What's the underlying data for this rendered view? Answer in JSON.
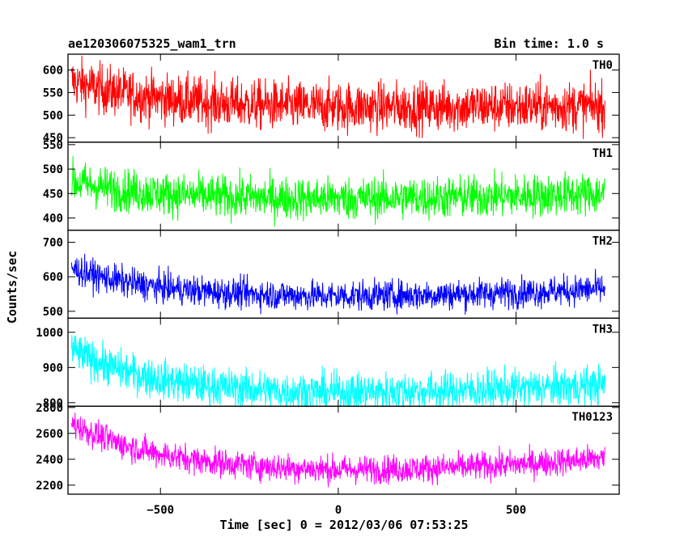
{
  "header": {
    "title": "ae120306075325_wam1_trn",
    "bin_time": "Bin time: 1.0 s"
  },
  "chart_data": {
    "type": "line",
    "title": "ae120306075325_wam1_trn",
    "xlabel": "Time [sec] 0 = 2012/03/06 07:53:25",
    "ylabel": "Counts/sec",
    "xlim": [
      -760,
      790
    ],
    "x_start": -750,
    "x_end": 750,
    "x_step": 1,
    "xticks": [
      -500,
      0,
      500
    ],
    "xtick_labels": [
      "−500",
      "0",
      "500"
    ],
    "grid": false,
    "panels": [
      {
        "name": "TH0",
        "color": "#ff0000",
        "ylim": [
          440,
          635
        ],
        "yticks": [
          450,
          500,
          550,
          600
        ],
        "start_level": 575,
        "min_level": 518,
        "min_at": 0,
        "end_level": 520,
        "noise": 28
      },
      {
        "name": "TH1",
        "color": "#00ff00",
        "ylim": [
          375,
          555
        ],
        "yticks": [
          400,
          450,
          500,
          550
        ],
        "start_level": 475,
        "min_level": 440,
        "min_at": -100,
        "end_level": 450,
        "noise": 22
      },
      {
        "name": "TH2",
        "color": "#0000ff",
        "ylim": [
          480,
          735
        ],
        "yticks": [
          500,
          600,
          700
        ],
        "start_level": 625,
        "min_level": 545,
        "min_at": -50,
        "end_level": 565,
        "noise": 22
      },
      {
        "name": "TH3",
        "color": "#00ffff",
        "ylim": [
          790,
          1040
        ],
        "yticks": [
          800,
          900,
          1000
        ],
        "start_level": 950,
        "min_level": 830,
        "min_at": -50,
        "end_level": 850,
        "noise": 28
      },
      {
        "name": "TH0123",
        "color": "#ff00ff",
        "ylim": [
          2130,
          2810
        ],
        "yticks": [
          2200,
          2400,
          2600,
          2800
        ],
        "start_level": 2680,
        "min_level": 2320,
        "min_at": 0,
        "end_level": 2410,
        "noise": 55
      }
    ]
  }
}
